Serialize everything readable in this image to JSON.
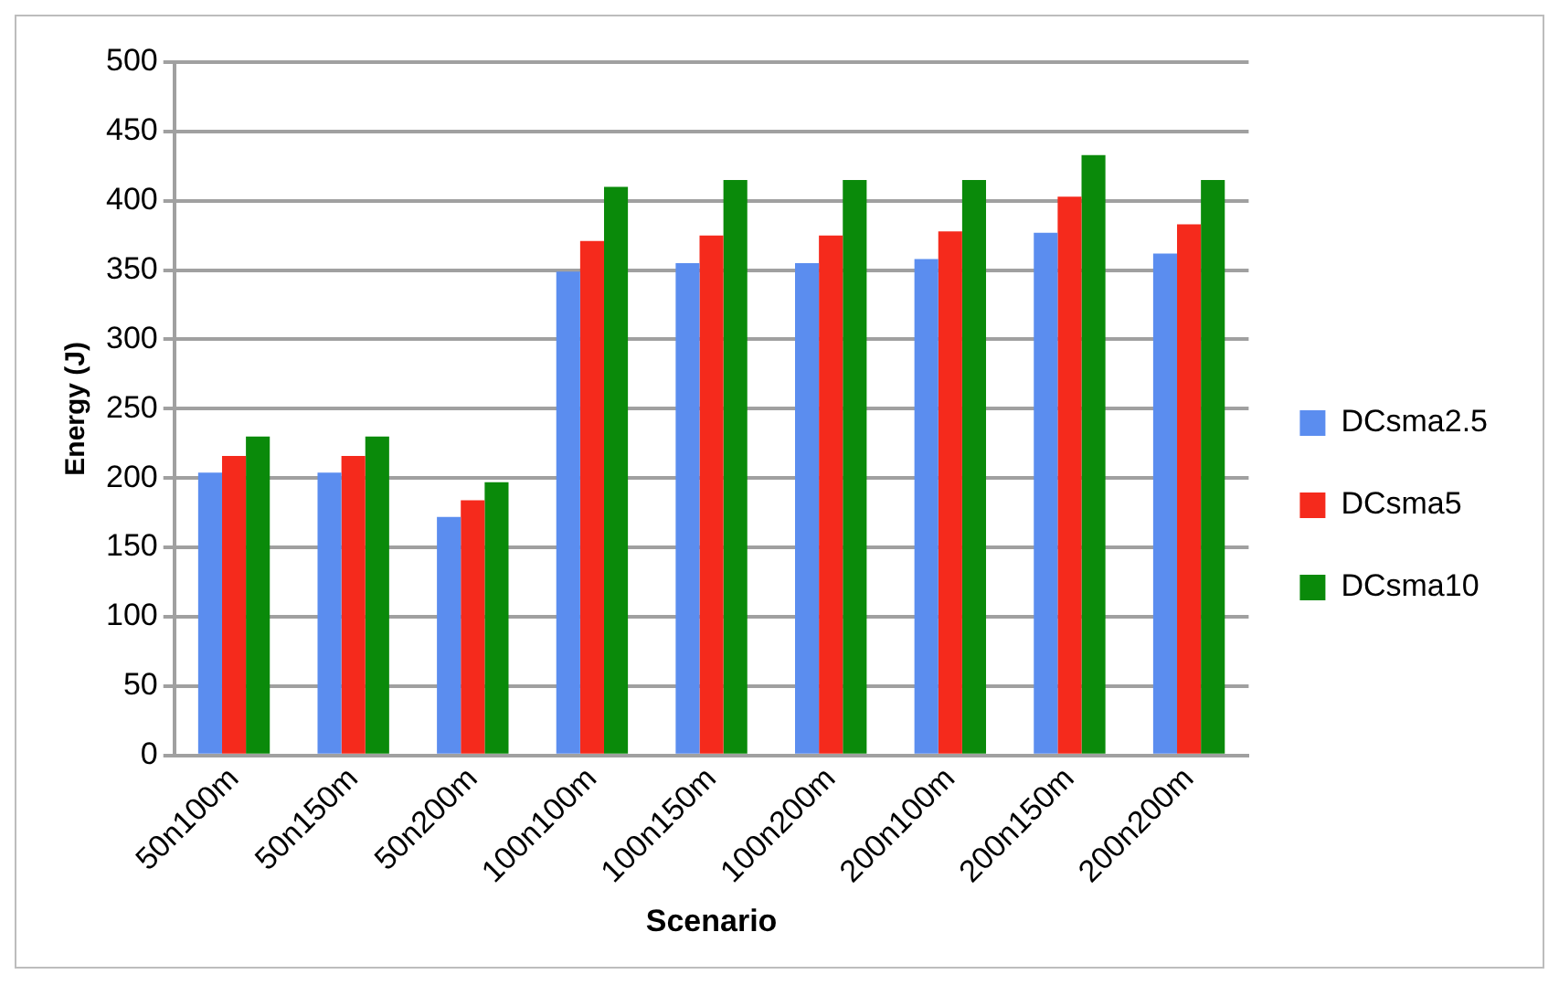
{
  "chart_data": {
    "type": "bar",
    "xlabel": "Scenario",
    "ylabel": "Energy (J)",
    "categories": [
      "50n100m",
      "50n150m",
      "50n200m",
      "100n100m",
      "100n150m",
      "100n200m",
      "200n100m",
      "200n150m",
      "200n200m"
    ],
    "series": [
      {
        "name": "DCsma2.5",
        "color": "#5b8def",
        "values": [
          204,
          204,
          172,
          349,
          355,
          355,
          358,
          377,
          362
        ]
      },
      {
        "name": "DCsma5",
        "color": "#f52a1c",
        "values": [
          216,
          216,
          184,
          371,
          375,
          375,
          378,
          403,
          383
        ]
      },
      {
        "name": "DCsma10",
        "color": "#0a8a0a",
        "values": [
          230,
          230,
          197,
          410,
          415,
          415,
          415,
          433,
          415
        ]
      }
    ],
    "ylim": [
      0,
      500
    ],
    "yticks": [
      0,
      50,
      100,
      150,
      200,
      250,
      300,
      350,
      400,
      450,
      500
    ],
    "grid": "y",
    "legend": "right"
  }
}
